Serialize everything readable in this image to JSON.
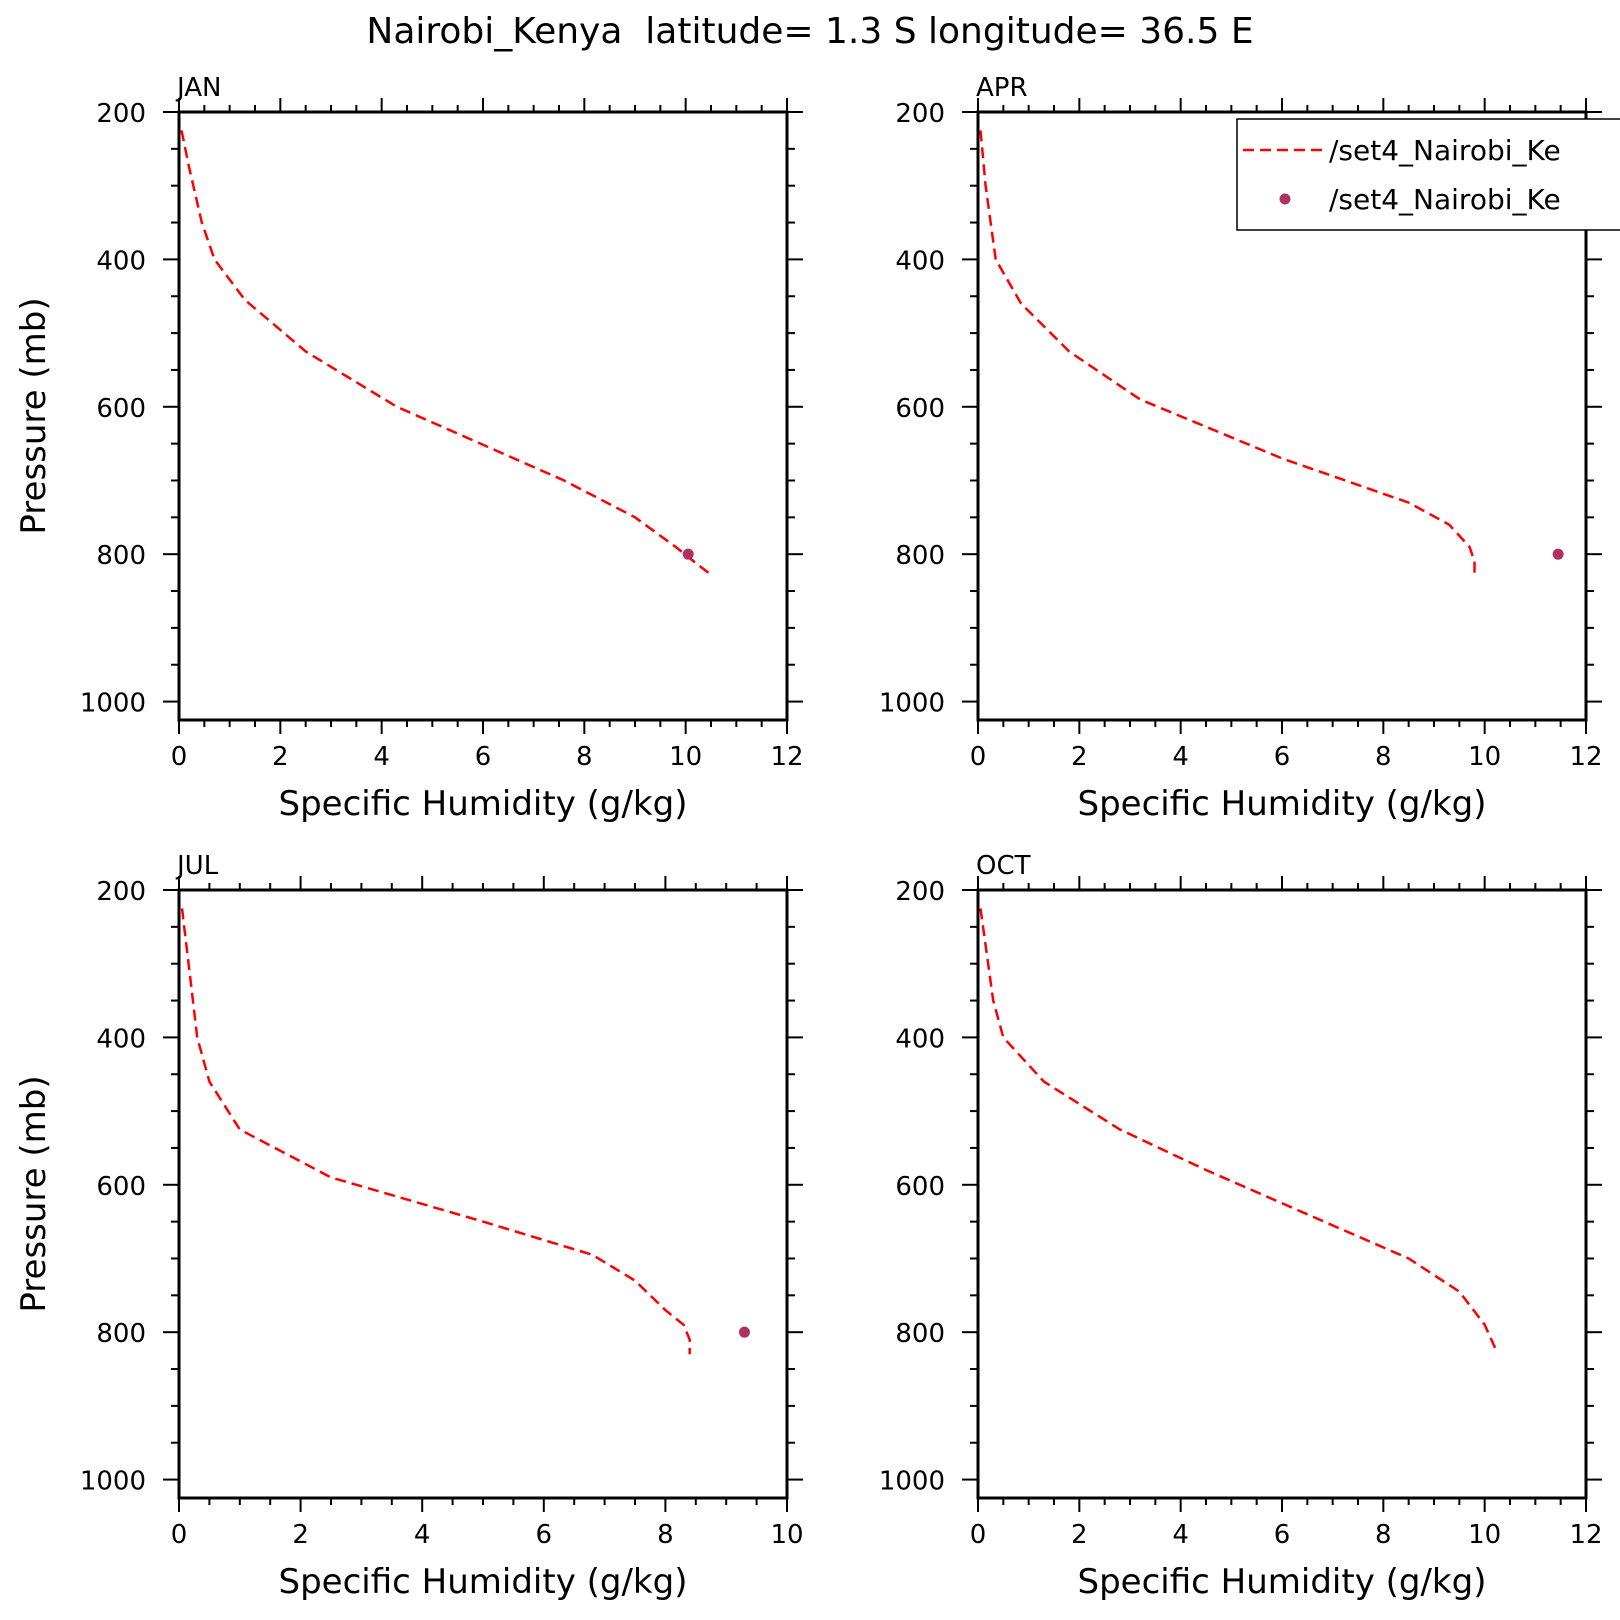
{
  "title": "Nairobi_Kenya  latitude= 1.3 S longitude= 36.5 E",
  "colors": {
    "model_line": "#ff0000",
    "obs_marker": "#b03060",
    "axes": "#000000"
  },
  "legend": {
    "placement": "top-right of APR panel",
    "entries": [
      {
        "label": "/set4_Nairobi_Ke",
        "style": "dashed-line"
      },
      {
        "label": "/set4_Nairobi_Ke",
        "style": "dot"
      }
    ]
  },
  "chart_data": [
    {
      "type": "line",
      "panel": "JAN",
      "xlabel": "Specific Humidity (g/kg)",
      "ylabel": "Pressure (mb)",
      "xlim": [
        0,
        12
      ],
      "ylim": [
        200,
        1025
      ],
      "y_inverted": true,
      "xticks": [
        "0",
        "2",
        "4",
        "6",
        "8",
        "10",
        "12"
      ],
      "yticks": [
        "200",
        "400",
        "600",
        "800",
        "1000"
      ],
      "series": [
        {
          "style": "dashed",
          "x": [
            0.05,
            0.2,
            0.45,
            0.7,
            1.3,
            2.5,
            4.3,
            7.6,
            9.0,
            9.8,
            10.2,
            10.5
          ],
          "y": [
            225,
            275,
            350,
            400,
            455,
            525,
            600,
            700,
            750,
            790,
            812,
            828
          ]
        },
        {
          "style": "marker",
          "x": [
            10.05
          ],
          "y": [
            800
          ]
        }
      ]
    },
    {
      "type": "line",
      "panel": "APR",
      "xlabel": "Specific Humidity (g/kg)",
      "ylabel": "",
      "xlim": [
        0,
        12
      ],
      "ylim": [
        200,
        1025
      ],
      "y_inverted": true,
      "xticks": [
        "0",
        "2",
        "4",
        "6",
        "8",
        "10",
        "12"
      ],
      "yticks": [
        "200",
        "400",
        "600",
        "800",
        "1000"
      ],
      "series": [
        {
          "style": "dashed",
          "x": [
            0.05,
            0.15,
            0.35,
            0.85,
            1.8,
            3.2,
            6.0,
            8.5,
            9.3,
            9.7,
            9.8,
            9.8
          ],
          "y": [
            225,
            300,
            400,
            460,
            525,
            590,
            670,
            730,
            760,
            790,
            810,
            828
          ]
        },
        {
          "style": "marker",
          "x": [
            11.45
          ],
          "y": [
            800
          ]
        }
      ]
    },
    {
      "type": "line",
      "panel": "JUL",
      "xlabel": "Specific Humidity (g/kg)",
      "ylabel": "Pressure (mb)",
      "xlim": [
        0,
        10
      ],
      "ylim": [
        200,
        1025
      ],
      "y_inverted": true,
      "xticks": [
        "0",
        "2",
        "4",
        "6",
        "8",
        "10"
      ],
      "yticks": [
        "200",
        "400",
        "600",
        "800",
        "1000"
      ],
      "series": [
        {
          "style": "dashed",
          "x": [
            0.05,
            0.2,
            0.3,
            0.5,
            1.0,
            2.5,
            5.0,
            6.8,
            7.5,
            8.0,
            8.3,
            8.4,
            8.4
          ],
          "y": [
            225,
            330,
            400,
            460,
            525,
            590,
            650,
            695,
            730,
            770,
            790,
            810,
            830
          ]
        },
        {
          "style": "marker",
          "x": [
            9.3
          ],
          "y": [
            800
          ]
        }
      ]
    },
    {
      "type": "line",
      "panel": "OCT",
      "xlabel": "Specific Humidity (g/kg)",
      "ylabel": "",
      "xlim": [
        0,
        12
      ],
      "ylim": [
        200,
        1025
      ],
      "y_inverted": true,
      "xticks": [
        "0",
        "2",
        "4",
        "6",
        "8",
        "10",
        "12"
      ],
      "yticks": [
        "200",
        "400",
        "600",
        "800",
        "1000"
      ],
      "series": [
        {
          "style": "dashed",
          "x": [
            0.05,
            0.3,
            0.5,
            1.3,
            2.8,
            4.5,
            6.5,
            8.5,
            9.5,
            10.0,
            10.25
          ],
          "y": [
            225,
            350,
            400,
            460,
            525,
            580,
            640,
            700,
            745,
            790,
            828
          ]
        }
      ]
    }
  ]
}
